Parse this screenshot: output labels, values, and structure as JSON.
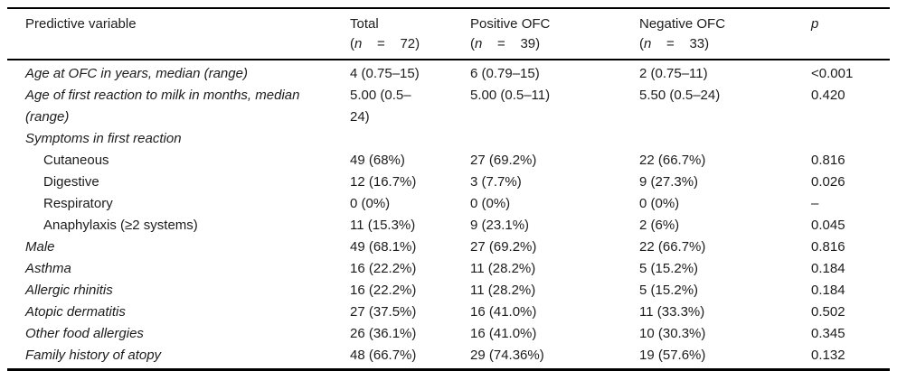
{
  "table": {
    "header": {
      "col_variable": {
        "label": "Predictive variable"
      },
      "col_total": {
        "label": "Total",
        "sub_open": "(",
        "sub_n": "n",
        "sub_rest": "    =    72)"
      },
      "col_positive": {
        "label": "Positive OFC",
        "sub_open": "(",
        "sub_n": "n",
        "sub_rest": "    =    39)"
      },
      "col_negative": {
        "label": "Negative OFC",
        "sub_open": "(",
        "sub_n": "n",
        "sub_rest": "    =    33)"
      },
      "col_p": {
        "label": "p"
      }
    },
    "rows": [
      {
        "label": "Age at OFC in years, median (range)",
        "italic": true,
        "indent": false,
        "total": "4 (0.75–15)",
        "positive": "6 (0.79–15)",
        "negative": "2 (0.75–11)",
        "p": "<0.001"
      },
      {
        "label": "Age of first reaction to milk in months, median (range)",
        "italic": true,
        "indent": false,
        "total": "5.00 (0.5–24)",
        "positive": "5.00 (0.5–11)",
        "negative": "5.50 (0.5–24)",
        "p": "0.420"
      },
      {
        "label": "Symptoms in first reaction",
        "italic": true,
        "indent": false,
        "total": "",
        "positive": "",
        "negative": "",
        "p": ""
      },
      {
        "label": "Cutaneous",
        "italic": false,
        "indent": true,
        "total": "49 (68%)",
        "positive": "27 (69.2%)",
        "negative": "22 (66.7%)",
        "p": "0.816"
      },
      {
        "label": "Digestive",
        "italic": false,
        "indent": true,
        "total": "12 (16.7%)",
        "positive": "3 (7.7%)",
        "negative": "9 (27.3%)",
        "p": "0.026"
      },
      {
        "label": "Respiratory",
        "italic": false,
        "indent": true,
        "total": "0 (0%)",
        "positive": "0 (0%)",
        "negative": "0 (0%)",
        "p": "–"
      },
      {
        "label": "Anaphylaxis (≥2 systems)",
        "italic": false,
        "indent": true,
        "total": "11 (15.3%)",
        "positive": "9 (23.1%)",
        "negative": "2 (6%)",
        "p": "0.045"
      },
      {
        "label": "Male",
        "italic": true,
        "indent": false,
        "total": "49 (68.1%)",
        "positive": "27 (69.2%)",
        "negative": "22 (66.7%)",
        "p": "0.816"
      },
      {
        "label": "Asthma",
        "italic": true,
        "indent": false,
        "total": "16 (22.2%)",
        "positive": "11 (28.2%)",
        "negative": "5 (15.2%)",
        "p": "0.184"
      },
      {
        "label": "Allergic rhinitis",
        "italic": true,
        "indent": false,
        "total": "16 (22.2%)",
        "positive": "11 (28.2%)",
        "negative": "5 (15.2%)",
        "p": "0.184"
      },
      {
        "label": "Atopic dermatitis",
        "italic": true,
        "indent": false,
        "total": "27 (37.5%)",
        "positive": "16 (41.0%)",
        "negative": "11 (33.3%)",
        "p": "0.502"
      },
      {
        "label": "Other food allergies",
        "italic": true,
        "indent": false,
        "total": "26 (36.1%)",
        "positive": "16 (41.0%)",
        "negative": "10 (30.3%)",
        "p": "0.345"
      },
      {
        "label": "Family history of atopy",
        "italic": true,
        "indent": false,
        "total": "48 (66.7%)",
        "positive": "29 (74.36%)",
        "negative": "19 (57.6%)",
        "p": "0.132"
      }
    ]
  }
}
